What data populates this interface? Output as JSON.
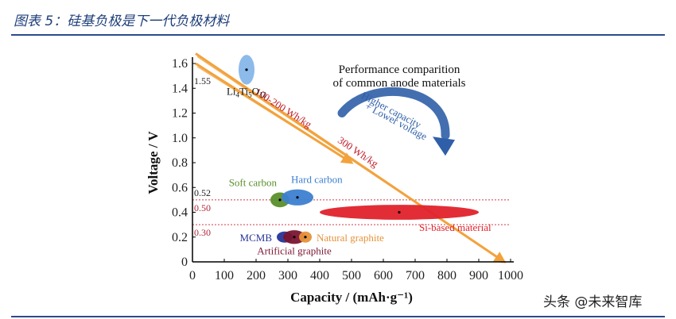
{
  "caption": "图表 5：硅基负极是下一代负极材料",
  "watermark": "头条 @未来智库",
  "colors": {
    "caption": "#1f3f7a",
    "rule": "#2c4a8c",
    "arrow_orange": "#f2a23c",
    "si_red": "#e0222b",
    "blue_arrow": "#2f5fa8",
    "soft_carbon": "#5a8f2a",
    "hard_carbon": "#3d7fd0",
    "lto": "#7fb2e8",
    "mcmb": "#27349a",
    "artificial": "#7a1530",
    "natural": "#e6923a"
  },
  "chart_data": {
    "type": "scatter",
    "title": "Performance comparition\nof common anode materials",
    "xlabel": "Capacity / (mAh·g⁻¹)",
    "ylabel": "Voltage / V",
    "xlim": [
      0,
      1000
    ],
    "ylim": [
      0,
      1.6
    ],
    "xticks": [
      "0",
      "100",
      "200",
      "300",
      "400",
      "500",
      "600",
      "700",
      "800",
      "900",
      "1000"
    ],
    "yticks": [
      "0",
      "0.2",
      "0.4",
      "0.6",
      "0.8",
      "1.0",
      "1.2",
      "1.4",
      "1.6"
    ],
    "reference_lines": [
      {
        "y": 0.5,
        "label": "0.50"
      },
      {
        "y": 0.3,
        "label": "0.30"
      }
    ],
    "extra_ylabels": [
      {
        "y": 1.55,
        "label": "1.55"
      },
      {
        "y": 0.52,
        "label": "0.52"
      }
    ],
    "energy_arrows": [
      {
        "label": "100-200 Wh/kg",
        "start": [
          10,
          1.6
        ],
        "end": [
          500,
          0.8
        ]
      },
      {
        "label": "300 Wh/kg",
        "start": [
          10,
          1.68
        ],
        "end": [
          980,
          0.0
        ]
      }
    ],
    "trend_annotation": "Higher capacity\n+ Lower voltage",
    "materials": [
      {
        "name": "Li4Ti5O12",
        "capacity": 170,
        "voltage": 1.55,
        "cap_spread": 25,
        "volt_spread": 0.12,
        "color_key": "lto",
        "label_pos": "below"
      },
      {
        "name": "Soft carbon",
        "capacity": 275,
        "voltage": 0.5,
        "cap_spread": 30,
        "volt_spread": 0.06,
        "color_key": "soft_carbon",
        "label_pos": "above-left"
      },
      {
        "name": "Hard carbon",
        "capacity": 330,
        "voltage": 0.52,
        "cap_spread": 50,
        "volt_spread": 0.065,
        "color_key": "hard_carbon",
        "label_pos": "above-right"
      },
      {
        "name": "Si-based material",
        "capacity": 650,
        "voltage": 0.4,
        "cap_spread": 250,
        "volt_spread": 0.06,
        "color_key": "si_red",
        "label_pos": "below-right"
      },
      {
        "name": "MCMB",
        "capacity": 290,
        "voltage": 0.2,
        "cap_spread": 25,
        "volt_spread": 0.045,
        "color_key": "mcmb",
        "label_pos": "left"
      },
      {
        "name": "Artificial graphite",
        "capacity": 320,
        "voltage": 0.2,
        "cap_spread": 35,
        "volt_spread": 0.055,
        "color_key": "artificial",
        "label_pos": "below"
      },
      {
        "name": "Natural graphite",
        "capacity": 355,
        "voltage": 0.2,
        "cap_spread": 20,
        "volt_spread": 0.045,
        "color_key": "natural",
        "label_pos": "right"
      }
    ]
  }
}
